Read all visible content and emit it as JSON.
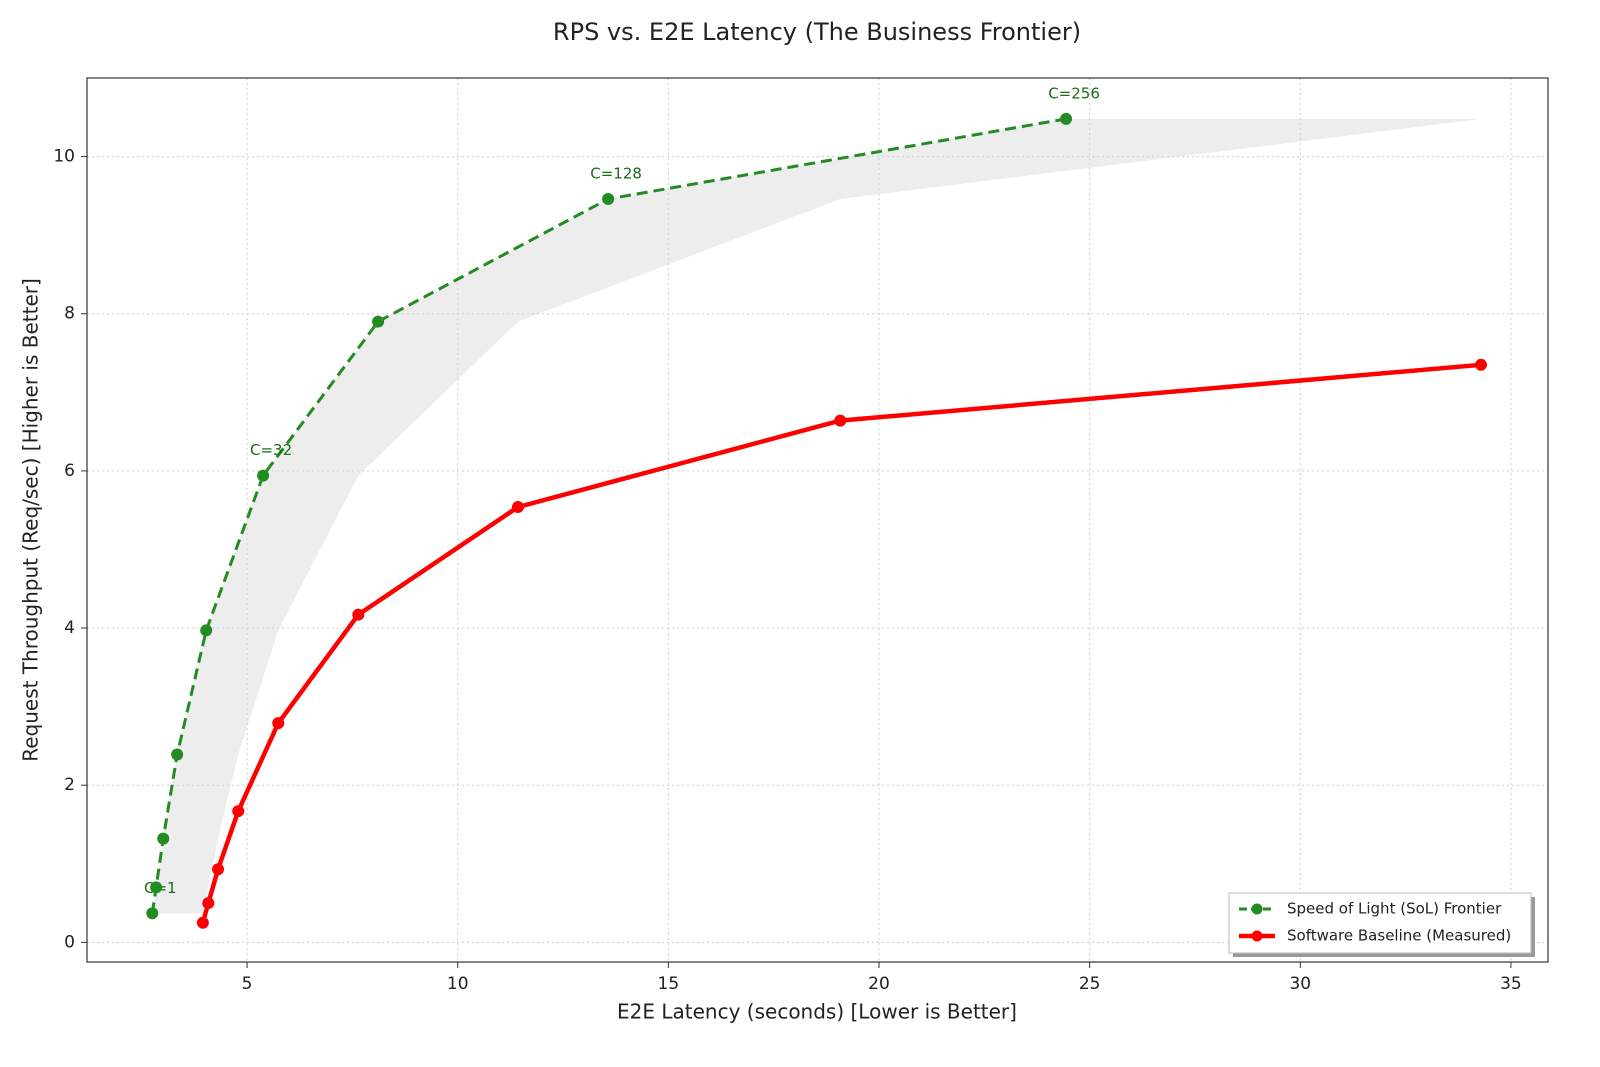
{
  "chart_data": {
    "type": "line",
    "title": "RPS vs. E2E Latency (The Business Frontier)",
    "xlabel": "E2E Latency (seconds) [Lower is Better]",
    "ylabel": "Request Throughput (Req/sec) [Higher is Better]",
    "xlim": [
      1.2,
      35.88
    ],
    "ylim": [
      -0.25,
      11.0
    ],
    "xticks": [
      5,
      10,
      15,
      20,
      25,
      30,
      35
    ],
    "yticks": [
      0,
      2,
      4,
      6,
      8,
      10
    ],
    "grid": true,
    "legend": "lower right",
    "series": [
      {
        "name": "Speed of Light (SoL) Frontier",
        "color": "#228b22",
        "style": "dashed",
        "x": [
          2.75,
          2.84,
          3.01,
          3.34,
          4.03,
          5.38,
          8.11,
          13.57,
          24.44
        ],
        "values": [
          0.37,
          0.7,
          1.32,
          2.39,
          3.97,
          5.94,
          7.9,
          9.46,
          10.48
        ],
        "point_labels": [
          "C=1",
          null,
          null,
          null,
          null,
          "C=32",
          null,
          "C=128",
          "C=256"
        ]
      },
      {
        "name": "Software Baseline (Measured)",
        "color": "#ff0000",
        "style": "solid",
        "x": [
          3.95,
          4.08,
          4.31,
          4.79,
          5.74,
          7.64,
          11.43,
          19.08,
          34.29
        ],
        "values": [
          0.25,
          0.5,
          0.93,
          1.67,
          2.79,
          4.17,
          5.54,
          6.64,
          7.35
        ]
      }
    ]
  }
}
